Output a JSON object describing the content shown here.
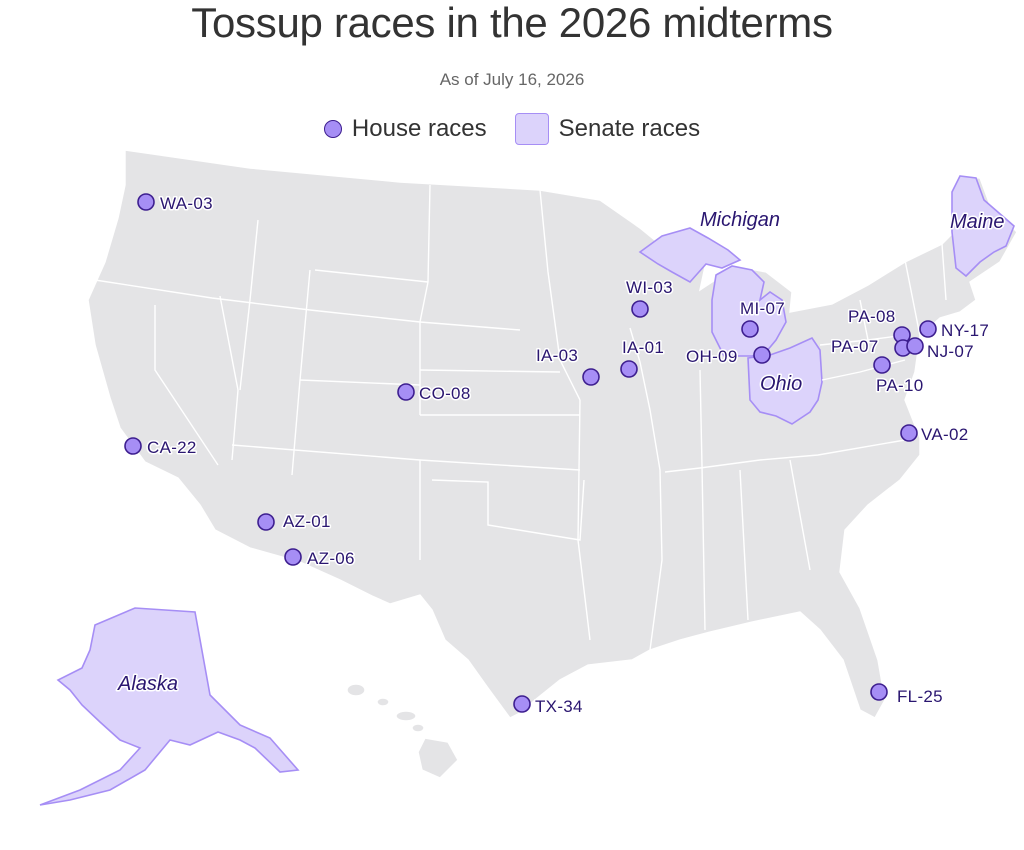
{
  "title": "Tossup races in the 2026 midterms",
  "subtitle": "As of July 16, 2026",
  "legend": {
    "house_label": "House races",
    "senate_label": "Senate races"
  },
  "colors": {
    "land": "#e4e4e6",
    "border": "#ffffff",
    "senate_fill": "#dcd3fb",
    "senate_stroke": "#a68ef5",
    "house_dot": "#a68ef5",
    "house_dot_stroke": "#3d1e8f",
    "label": "#2a1670"
  },
  "senate_races": [
    {
      "id": "michigan",
      "label": "Michigan"
    },
    {
      "id": "ohio",
      "label": "Ohio"
    },
    {
      "id": "maine",
      "label": "Maine"
    },
    {
      "id": "alaska",
      "label": "Alaska"
    }
  ],
  "house_races": [
    {
      "id": "wa03",
      "label": "WA-03"
    },
    {
      "id": "ca22",
      "label": "CA-22"
    },
    {
      "id": "az01",
      "label": "AZ-01"
    },
    {
      "id": "az06",
      "label": "AZ-06"
    },
    {
      "id": "co08",
      "label": "CO-08"
    },
    {
      "id": "ia03",
      "label": "IA-03"
    },
    {
      "id": "ia01",
      "label": "IA-01"
    },
    {
      "id": "wi03",
      "label": "WI-03"
    },
    {
      "id": "mi07",
      "label": "MI-07"
    },
    {
      "id": "oh09",
      "label": "OH-09"
    },
    {
      "id": "pa08",
      "label": "PA-08"
    },
    {
      "id": "pa07",
      "label": "PA-07"
    },
    {
      "id": "pa10",
      "label": "PA-10"
    },
    {
      "id": "ny17",
      "label": "NY-17"
    },
    {
      "id": "nj07",
      "label": "NJ-07"
    },
    {
      "id": "va02",
      "label": "VA-02"
    },
    {
      "id": "tx34",
      "label": "TX-34"
    },
    {
      "id": "fl25",
      "label": "FL-25"
    }
  ]
}
